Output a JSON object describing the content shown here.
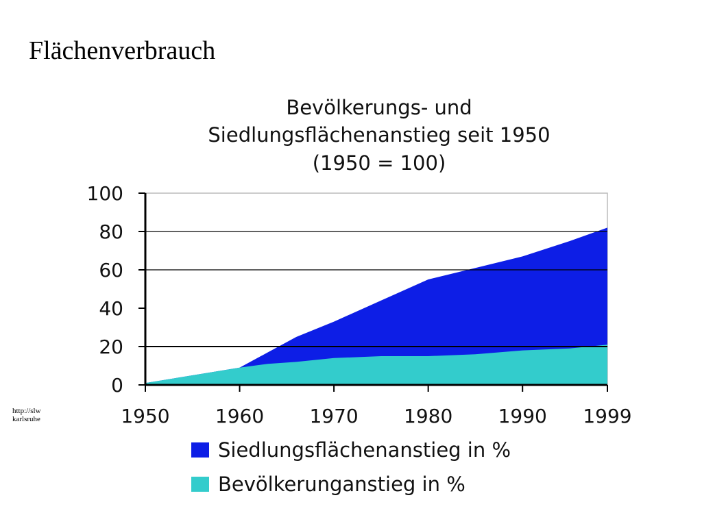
{
  "page": {
    "title": "Flächenverbrauch",
    "source_line_1": "http://slw",
    "source_line_2": "karlsruhe"
  },
  "colors": {
    "settlement": "#0d1ee6",
    "population": "#33cccc",
    "grid": "#000000",
    "axis": "#000000",
    "plot_border": "#bbbbbb",
    "text": "#111111"
  },
  "chart_data": {
    "type": "area",
    "stacked": true,
    "title": [
      "Bevölkerungs- und",
      "Siedlungsflächenanstieg seit 1950",
      "(1950 = 100)"
    ],
    "xlabel": "",
    "ylabel": "",
    "xlim": [
      1950,
      1999
    ],
    "ylim": [
      0,
      100
    ],
    "x_ticks": [
      1950,
      1960,
      1970,
      1980,
      1990,
      1999
    ],
    "y_ticks": [
      0,
      20,
      40,
      60,
      80,
      100
    ],
    "gridlines_y": [
      20,
      60,
      80
    ],
    "legend_position": "bottom",
    "x": [
      1950,
      1955,
      1960,
      1963,
      1966,
      1970,
      1975,
      1980,
      1985,
      1990,
      1995,
      1999
    ],
    "series": [
      {
        "name": "Bevölkerunganstieg in %",
        "values": [
          1,
          5,
          9,
          11,
          12,
          14,
          15,
          15,
          16,
          18,
          19,
          21
        ]
      },
      {
        "name": "Siedlungsflächenanstieg in %",
        "values": [
          1,
          5,
          9,
          17,
          25,
          33,
          44,
          55,
          61,
          67,
          75,
          82
        ]
      }
    ]
  }
}
